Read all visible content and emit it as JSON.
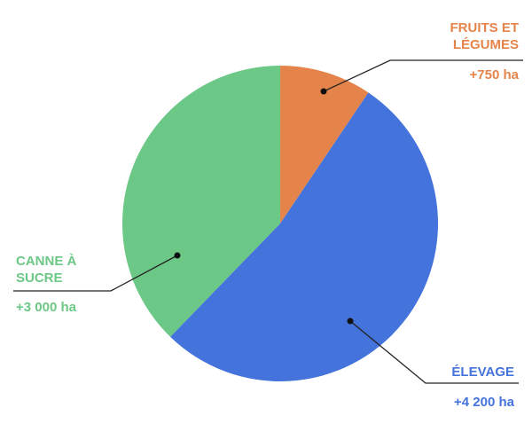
{
  "chart_data": {
    "type": "pie",
    "categories": [
      "FRUITS ET LÉGUMES",
      "ÉLEVAGE",
      "CANNE À SUCRE"
    ],
    "values": [
      750,
      4200,
      3000
    ],
    "value_labels": [
      "+750 ha",
      "+4 200 ha",
      "+3 000 ha"
    ],
    "colors": [
      "#E5844A",
      "#4573DC",
      "#6CC886"
    ]
  }
}
